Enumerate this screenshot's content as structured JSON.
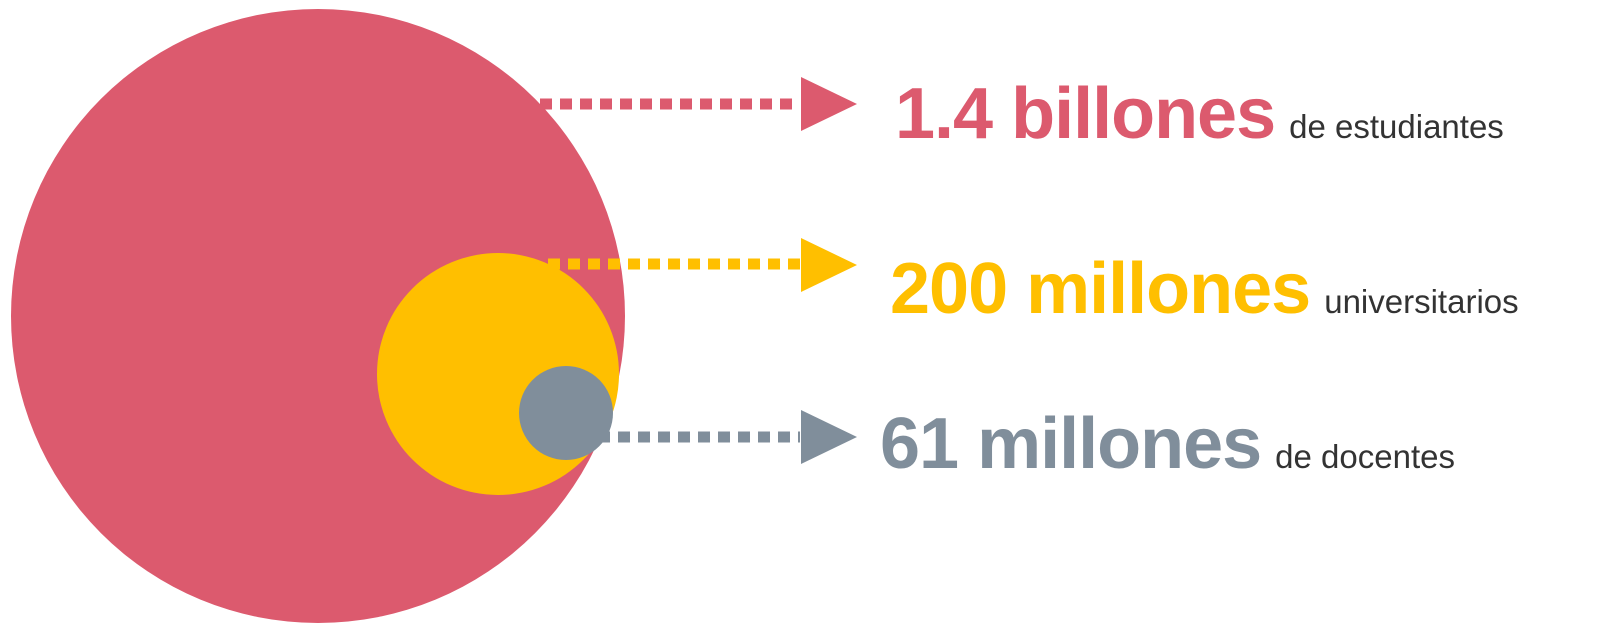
{
  "colors": {
    "students": "#DC5A6E",
    "university": "#FFBF00",
    "teachers": "#808E9B",
    "caption": "#333333"
  },
  "items": [
    {
      "value": "1.4 billones",
      "caption": "de estudiantes"
    },
    {
      "value": "200 millones",
      "caption": "universitarios"
    },
    {
      "value": "61 millones",
      "caption": "de docentes"
    }
  ]
}
